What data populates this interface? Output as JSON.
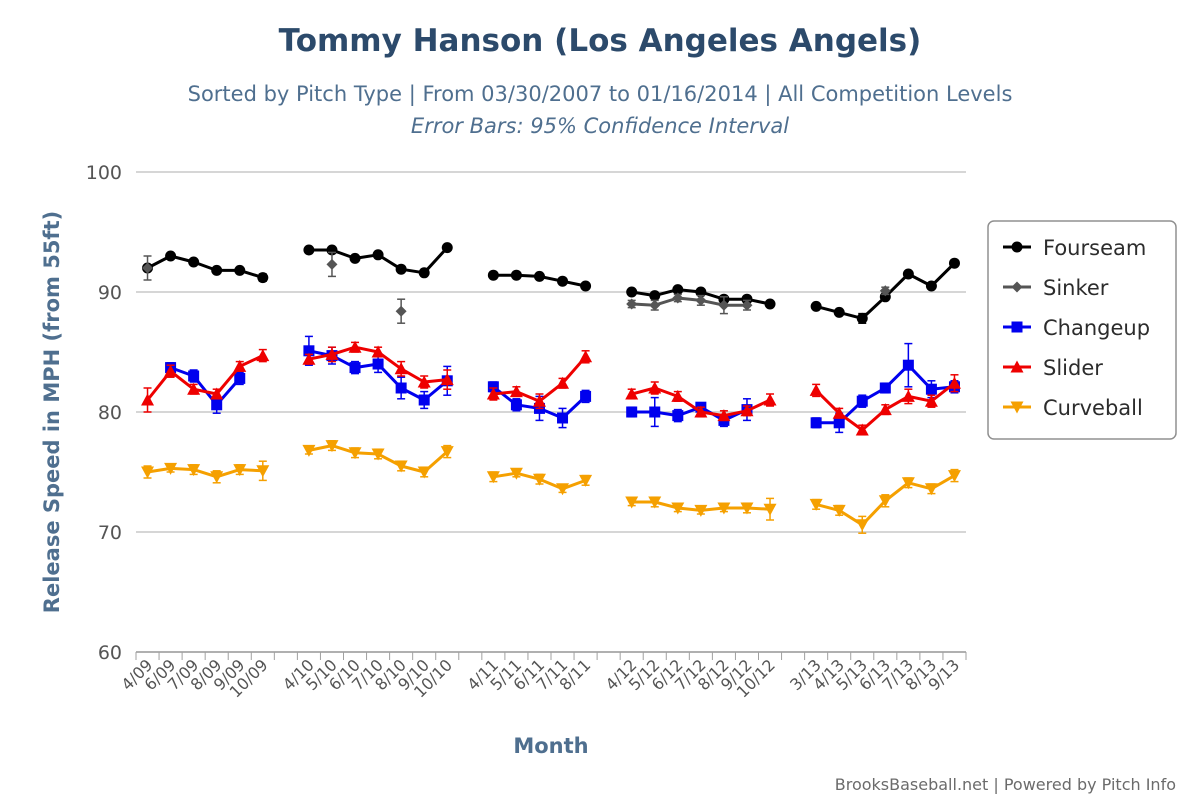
{
  "chart_data": {
    "type": "line",
    "title": "Tommy Hanson (Los Angeles Angels)",
    "subtitle": "Sorted by Pitch Type | From 03/30/2007 to 01/16/2014 | All Competition Levels",
    "subtitle2": "Error Bars: 95% Confidence Interval",
    "xlabel": "Month",
    "ylabel": "Release Speed in MPH (from 55ft)",
    "ylim": [
      60,
      100
    ],
    "yticks": [
      60,
      70,
      80,
      90,
      100
    ],
    "grid": true,
    "legend_position": "right",
    "credits": "BrooksBaseball.net | Powered by Pitch Info",
    "categories": [
      "4/09",
      "6/09",
      "7/09",
      "8/09",
      "9/09",
      "10/09",
      "",
      "4/10",
      "5/10",
      "6/10",
      "7/10",
      "8/10",
      "9/10",
      "10/10",
      "",
      "4/11",
      "5/11",
      "6/11",
      "7/11",
      "8/11",
      "",
      "4/12",
      "5/12",
      "6/12",
      "7/12",
      "8/12",
      "9/12",
      "10/12",
      "",
      "3/13",
      "4/13",
      "5/13",
      "6/13",
      "7/13",
      "8/13",
      "9/13"
    ],
    "series": [
      {
        "name": "Fourseam",
        "color": "#000000",
        "marker": "circle",
        "values": [
          92.0,
          93.0,
          92.5,
          91.8,
          91.8,
          91.2,
          null,
          93.5,
          93.5,
          92.8,
          93.1,
          91.9,
          91.6,
          93.7,
          null,
          91.4,
          91.4,
          91.3,
          90.9,
          90.5,
          null,
          90.0,
          89.7,
          90.2,
          90.0,
          89.4,
          89.4,
          89.0,
          null,
          88.8,
          88.3,
          87.8,
          89.6,
          91.5,
          90.5,
          92.4
        ],
        "errors": [
          0,
          0,
          0,
          0,
          0,
          0.3,
          null,
          0,
          0,
          0,
          0,
          0,
          0,
          0,
          null,
          0,
          0,
          0,
          0,
          0,
          null,
          0,
          0,
          0,
          0,
          0,
          0,
          0,
          null,
          0,
          0,
          0.4,
          0,
          0,
          0,
          0
        ]
      },
      {
        "name": "Sinker",
        "color": "#555555",
        "marker": "diamond",
        "values": [
          92.0,
          null,
          null,
          null,
          null,
          null,
          null,
          null,
          92.3,
          null,
          null,
          88.4,
          null,
          null,
          null,
          null,
          null,
          null,
          null,
          null,
          null,
          89.0,
          88.9,
          89.5,
          89.3,
          88.9,
          88.9,
          null,
          null,
          null,
          null,
          null,
          90.1,
          null,
          null,
          null
        ],
        "errors": [
          1.0,
          null,
          null,
          null,
          null,
          null,
          null,
          null,
          1.0,
          null,
          null,
          1.0,
          null,
          null,
          null,
          null,
          null,
          null,
          null,
          null,
          null,
          0.3,
          0.4,
          0.3,
          0.4,
          0.7,
          0.4,
          null,
          null,
          null,
          null,
          null,
          0.3,
          null,
          null,
          null
        ]
      },
      {
        "name": "Changeup",
        "color": "#0000ee",
        "marker": "square",
        "values": [
          null,
          83.7,
          83.0,
          80.6,
          82.8,
          null,
          null,
          85.1,
          84.7,
          83.7,
          84.0,
          82.0,
          81.0,
          82.6,
          null,
          82.1,
          80.6,
          80.3,
          79.5,
          81.3,
          null,
          80.0,
          80.0,
          79.7,
          80.4,
          79.3,
          80.2,
          null,
          null,
          79.1,
          79.1,
          80.9,
          82.0,
          83.9,
          81.9,
          82.1
        ],
        "errors": [
          null,
          0.4,
          0.5,
          0.7,
          0.5,
          null,
          null,
          1.2,
          0.7,
          0.5,
          0.7,
          0.9,
          0.7,
          1.2,
          null,
          0.4,
          0.5,
          1.0,
          0.8,
          0.5,
          null,
          0.4,
          1.2,
          0.5,
          0.3,
          0.5,
          0.9,
          null,
          null,
          0.4,
          0.8,
          0.5,
          0.4,
          1.8,
          0.7,
          0.5
        ]
      },
      {
        "name": "Slider",
        "color": "#ee0000",
        "marker": "triangle",
        "values": [
          81.0,
          83.4,
          81.9,
          81.5,
          83.8,
          84.7,
          null,
          84.4,
          84.8,
          85.4,
          85.0,
          83.6,
          82.5,
          82.7,
          null,
          81.5,
          81.7,
          80.9,
          82.4,
          84.6,
          null,
          81.5,
          82.0,
          81.3,
          80.0,
          79.7,
          80.1,
          81.0,
          null,
          81.8,
          79.9,
          78.5,
          80.2,
          81.3,
          80.9,
          82.4
        ],
        "errors": [
          1.0,
          0.5,
          0.4,
          0.4,
          0.4,
          0.5,
          null,
          0.4,
          0.6,
          0.4,
          0.4,
          0.6,
          0.5,
          0.8,
          null,
          0.5,
          0.4,
          0.6,
          0.4,
          0.5,
          null,
          0.4,
          0.5,
          0.4,
          0.4,
          0.4,
          0.4,
          0.5,
          null,
          0.5,
          0.4,
          0.4,
          0.4,
          0.6,
          0.5,
          0.7
        ]
      },
      {
        "name": "Curveball",
        "color": "#f5a000",
        "marker": "triangle-down",
        "values": [
          75.0,
          75.3,
          75.2,
          74.6,
          75.2,
          75.1,
          null,
          76.8,
          77.2,
          76.6,
          76.5,
          75.5,
          75.0,
          76.7,
          null,
          74.6,
          74.9,
          74.4,
          73.6,
          74.3,
          null,
          72.5,
          72.5,
          72.0,
          71.8,
          72.0,
          72.0,
          71.9,
          null,
          72.3,
          71.8,
          70.6,
          72.6,
          74.1,
          73.6,
          74.7
        ],
        "errors": [
          0.5,
          0.3,
          0.4,
          0.5,
          0.4,
          0.8,
          null,
          0.3,
          0.4,
          0.4,
          0.4,
          0.4,
          0.4,
          0.5,
          null,
          0.4,
          0.3,
          0.4,
          0.3,
          0.4,
          null,
          0.3,
          0.4,
          0.3,
          0.3,
          0.3,
          0.4,
          0.9,
          null,
          0.4,
          0.4,
          0.7,
          0.5,
          0.4,
          0.4,
          0.5
        ]
      }
    ]
  }
}
